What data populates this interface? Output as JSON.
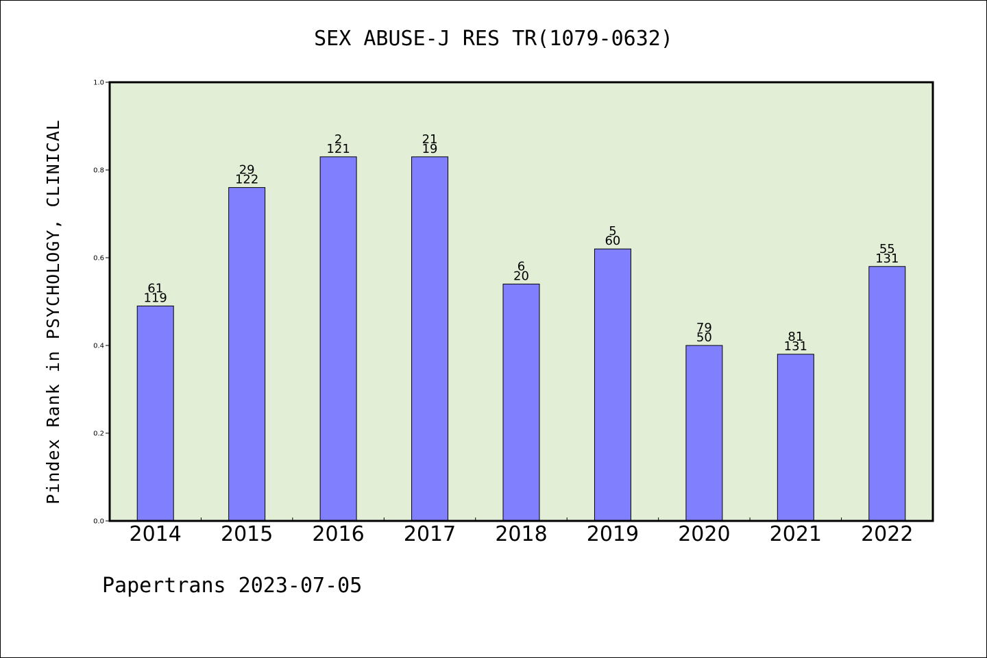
{
  "chart_data": {
    "type": "bar",
    "title": "SEX ABUSE-J RES TR(1079-0632)",
    "ylabel": "Pindex Rank in PSYCHOLOGY, CLINICAL",
    "xlabel": "",
    "categories": [
      "2014",
      "2015",
      "2016",
      "2017",
      "2018",
      "2019",
      "2020",
      "2021",
      "2022"
    ],
    "values": [
      0.49,
      0.76,
      0.83,
      0.83,
      0.54,
      0.62,
      0.4,
      0.38,
      0.58
    ],
    "labels_top": [
      "61",
      "29",
      "2",
      "21",
      "6",
      "5",
      "79",
      "81",
      "55"
    ],
    "labels_bottom": [
      "119",
      "122",
      "121",
      "19",
      "20",
      "60",
      "50",
      "131",
      "131"
    ],
    "ylim": [
      0,
      1.0
    ],
    "yticks": [
      "0.0",
      "0.2",
      "0.4",
      "0.6",
      "0.8",
      "1.0"
    ],
    "grid": false,
    "colors": {
      "bar": "#8080ff",
      "plot_bg": "#e2efd6",
      "frame": "#000000"
    }
  },
  "footer": "Papertrans 2023-07-05"
}
